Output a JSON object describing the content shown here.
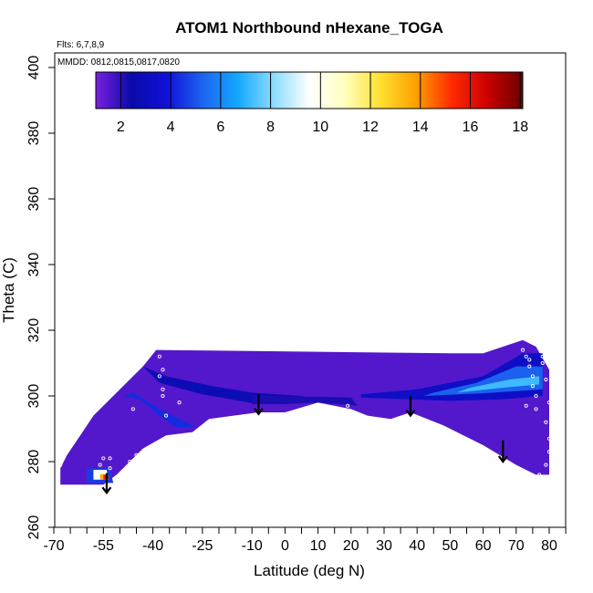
{
  "chart_data": {
    "type": "heatmap",
    "title": "ATOM1 Northbound nHexane_TOGA",
    "flights_note": "Flts: 6,7,8,9",
    "dates_note": "MMDD: 0812,0815,0817,0820",
    "xlabel": "Latitude (deg N)",
    "ylabel": "Theta (C)",
    "xlim": [
      -70,
      85
    ],
    "ylim": [
      260,
      405
    ],
    "x_ticks": [
      -70,
      -55,
      -40,
      -25,
      -10,
      0,
      10,
      20,
      30,
      40,
      50,
      60,
      70,
      80
    ],
    "x_minor_ticks": [
      -65,
      -60,
      -50,
      -45,
      -35,
      -30,
      -20,
      -15,
      -5,
      5,
      15,
      25,
      35,
      45,
      55,
      65,
      75,
      85
    ],
    "y_ticks": [
      260,
      280,
      300,
      320,
      340,
      360,
      380,
      400
    ],
    "colorbar": {
      "range": [
        1,
        18.1
      ],
      "ticks": [
        2,
        4,
        6,
        8,
        10,
        12,
        14,
        16,
        18
      ],
      "colors": [
        "#7a1fe0",
        "#0a0aa8",
        "#1010d8",
        "#1c64f0",
        "#14a8ff",
        "#8cdcff",
        "#ffffff",
        "#ffffbf",
        "#ffe030",
        "#ffa000",
        "#ff2a00",
        "#cc0000",
        "#6b0000"
      ]
    },
    "field_value": 1.5,
    "field_outline": [
      [
        -68,
        273
      ],
      [
        -55,
        273
      ],
      [
        -51,
        276
      ],
      [
        -43,
        284
      ],
      [
        -36,
        288
      ],
      [
        -28,
        289
      ],
      [
        -23,
        293
      ],
      [
        -8,
        295
      ],
      [
        0,
        295
      ],
      [
        10,
        298
      ],
      [
        20,
        296
      ],
      [
        25,
        294
      ],
      [
        32,
        293
      ],
      [
        38,
        295
      ],
      [
        48,
        291
      ],
      [
        60,
        285
      ],
      [
        70,
        279
      ],
      [
        76,
        276
      ],
      [
        80,
        276
      ],
      [
        80,
        308
      ],
      [
        76,
        315
      ],
      [
        72,
        317
      ],
      [
        60,
        313
      ],
      [
        50,
        313
      ],
      [
        -39,
        314
      ],
      [
        -43,
        309
      ],
      [
        -50,
        302
      ],
      [
        -58,
        294
      ],
      [
        -62,
        288
      ],
      [
        -66,
        282
      ],
      [
        -68,
        278
      ]
    ],
    "features": [
      {
        "name": "southern-shoulder-band",
        "value": 2.8,
        "points": [
          [
            -43,
            309
          ],
          [
            -36,
            306
          ],
          [
            -22,
            303
          ],
          [
            -10,
            301
          ],
          [
            5,
            300
          ],
          [
            8,
            298.5
          ],
          [
            -8,
            297.5
          ],
          [
            -25,
            300.5
          ],
          [
            -38,
            304
          ]
        ]
      },
      {
        "name": "southern-slope-band",
        "value": 4.3,
        "points": [
          [
            -49,
            300
          ],
          [
            -44,
            299
          ],
          [
            -38,
            294
          ],
          [
            -33,
            290.5
          ],
          [
            -27,
            290.5
          ],
          [
            -38,
            296
          ],
          [
            -46,
            301
          ]
        ]
      },
      {
        "name": "mid-latitude-ridge",
        "value": 2.2,
        "points": [
          [
            -10,
            297.5
          ],
          [
            0,
            297.5
          ],
          [
            10,
            298
          ],
          [
            22,
            297
          ],
          [
            20,
            299.5
          ],
          [
            0,
            300
          ],
          [
            -10,
            300
          ]
        ]
      },
      {
        "name": "arctic-band-outer",
        "value": 3.3,
        "points": [
          [
            23,
            299.5
          ],
          [
            50,
            298.5
          ],
          [
            66,
            299
          ],
          [
            78,
            300
          ],
          [
            78,
            313
          ],
          [
            72,
            313
          ],
          [
            60,
            306
          ],
          [
            40,
            302
          ],
          [
            23,
            300.5
          ]
        ]
      },
      {
        "name": "arctic-band-mid",
        "value": 5.2,
        "points": [
          [
            42,
            300
          ],
          [
            60,
            300.8
          ],
          [
            78,
            302
          ],
          [
            78,
            309
          ],
          [
            70,
            309
          ],
          [
            58,
            304
          ],
          [
            45,
            301
          ]
        ]
      },
      {
        "name": "arctic-band-core",
        "value": 7.2,
        "points": [
          [
            52,
            301
          ],
          [
            66,
            302.5
          ],
          [
            77,
            303.5
          ],
          [
            77,
            306
          ],
          [
            68,
            305
          ],
          [
            56,
            302.5
          ]
        ]
      },
      {
        "name": "antarctic-core-outer",
        "value": 4.6,
        "points": [
          [
            -60,
            278
          ],
          [
            -53,
            278
          ],
          [
            -52,
            273.5
          ],
          [
            -60,
            273.5
          ]
        ]
      },
      {
        "name": "antarctic-core-mid",
        "value": 9.5,
        "points": [
          [
            -58,
            277.5
          ],
          [
            -54,
            277.5
          ],
          [
            -53.5,
            274.5
          ],
          [
            -58,
            274.5
          ]
        ]
      },
      {
        "name": "antarctic-core-warm",
        "value": 13.5,
        "points": [
          [
            -56,
            276.2
          ],
          [
            -54.5,
            276.2
          ],
          [
            -54.5,
            274.5
          ],
          [
            -56,
            274.5
          ]
        ]
      },
      {
        "name": "antarctic-core-hot",
        "value": 15.8,
        "points": [
          [
            -55,
            276
          ],
          [
            -53.5,
            276
          ],
          [
            -53.5,
            274.5
          ],
          [
            -55,
            274.5
          ]
        ]
      }
    ],
    "sample_points": [
      [
        -39,
        315
      ],
      [
        -38,
        312
      ],
      [
        -37,
        308
      ],
      [
        -37,
        300
      ],
      [
        -36,
        294
      ],
      [
        -38,
        306
      ],
      [
        -37,
        302
      ],
      [
        -55,
        281
      ],
      [
        -53,
        281
      ],
      [
        -50,
        275
      ],
      [
        -56,
        279
      ],
      [
        -53,
        278
      ],
      [
        -47,
        280
      ],
      [
        -68,
        279
      ],
      [
        -46,
        296
      ],
      [
        -32,
        298
      ],
      [
        -45,
        282
      ],
      [
        -44,
        279
      ],
      [
        19,
        297
      ],
      [
        72,
        314
      ],
      [
        73,
        312
      ],
      [
        74,
        311
      ],
      [
        74,
        309
      ],
      [
        75,
        306
      ],
      [
        75,
        303
      ],
      [
        76,
        300
      ],
      [
        73,
        297
      ],
      [
        78,
        310
      ],
      [
        79,
        305
      ],
      [
        80,
        298
      ],
      [
        80,
        287
      ],
      [
        80,
        283
      ],
      [
        79,
        279
      ],
      [
        77,
        276
      ],
      [
        78,
        312
      ],
      [
        76,
        296
      ],
      [
        79,
        292
      ]
    ],
    "arrows": [
      {
        "x": -54,
        "y_top": 276.5,
        "y_tip": 270.5
      },
      {
        "x": -8,
        "y_top": 300.5,
        "y_tip": 294.5
      },
      {
        "x": 38,
        "y_top": 300,
        "y_tip": 294
      },
      {
        "x": 66,
        "y_top": 286.5,
        "y_tip": 280
      }
    ]
  }
}
